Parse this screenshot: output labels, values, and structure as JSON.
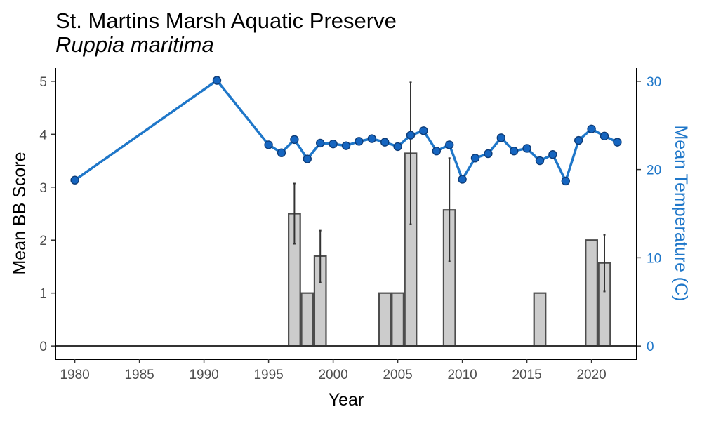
{
  "chart_data": {
    "type": "bar",
    "title": "St. Martins Marsh Aquatic Preserve",
    "subtitle": "Ruppia maritima",
    "xlabel": "Year",
    "ylabel": "Mean BB Score",
    "y2label": "Mean Temperature (C)",
    "xlim": [
      1978.5,
      2023.5
    ],
    "ylim": [
      -0.25,
      5.25
    ],
    "y2lim": [
      -1.5,
      31.5
    ],
    "xticks": [
      1980,
      1985,
      1990,
      1995,
      2000,
      2005,
      2010,
      2015,
      2020
    ],
    "yticks": [
      0,
      1,
      2,
      3,
      4,
      5
    ],
    "y2ticks": [
      0,
      10,
      20,
      30
    ],
    "grid": false,
    "colors": {
      "bar_fill": "#cccccc",
      "bar_stroke": "#4d4d4d",
      "error_bar": "#333333",
      "line": "#1f77c9",
      "point_fill": "#1565c0",
      "point_stroke": "#0d3c78",
      "axis": "#000000",
      "right_axis_text": "#1f77c9"
    },
    "bars": {
      "name": "Mean BB Score",
      "x": [
        1997,
        1998,
        1999,
        2004,
        2005,
        2006,
        2009,
        2016,
        2020,
        2021
      ],
      "values": [
        2.5,
        1.0,
        1.7,
        1.0,
        1.0,
        3.64,
        2.57,
        1.0,
        2.0,
        1.57
      ],
      "error_low": [
        1.93,
        null,
        1.2,
        null,
        null,
        2.3,
        1.6,
        null,
        null,
        1.03
      ],
      "error_high": [
        3.07,
        null,
        2.18,
        null,
        null,
        4.98,
        3.55,
        null,
        null,
        2.1
      ]
    },
    "line_series": {
      "name": "Mean Temperature",
      "x": [
        1980,
        1991,
        1995,
        1996,
        1997,
        1998,
        1999,
        2000,
        2001,
        2002,
        2003,
        2004,
        2005,
        2006,
        2007,
        2008,
        2009,
        2010,
        2011,
        2012,
        2013,
        2014,
        2015,
        2016,
        2017,
        2018,
        2019,
        2020,
        2021,
        2022
      ],
      "values": [
        18.8,
        30.1,
        22.8,
        21.9,
        23.4,
        21.2,
        23.0,
        22.9,
        22.7,
        23.2,
        23.5,
        23.1,
        22.6,
        23.9,
        24.4,
        22.1,
        22.8,
        18.9,
        21.3,
        21.8,
        23.6,
        22.1,
        22.4,
        21.0,
        21.7,
        18.7,
        23.3,
        24.6,
        23.8,
        23.1
      ]
    }
  }
}
